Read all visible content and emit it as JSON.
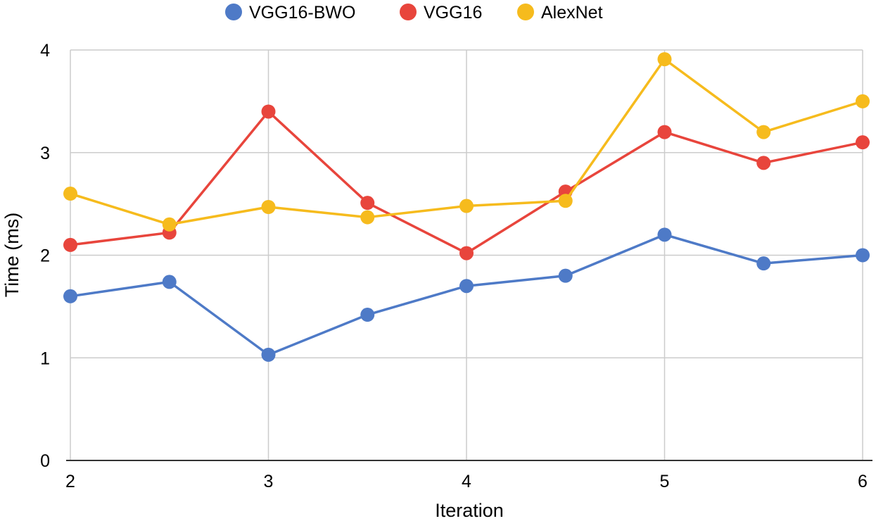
{
  "chart_data": {
    "type": "line",
    "title": "",
    "xlabel": "Iteration",
    "ylabel": "Time (ms)",
    "xlim": [
      2,
      6
    ],
    "ylim": [
      0,
      4
    ],
    "x_ticks": [
      2,
      3,
      4,
      5,
      6
    ],
    "y_ticks": [
      0,
      1,
      2,
      3,
      4
    ],
    "grid": true,
    "legend_position": "top-center",
    "x": [
      2,
      2.5,
      3,
      3.5,
      4,
      4.5,
      5,
      5.5,
      6
    ],
    "series": [
      {
        "name": "VGG16-BWO",
        "color": "#4e7ac7",
        "values": [
          1.6,
          1.74,
          1.03,
          1.42,
          1.7,
          1.8,
          2.2,
          1.92,
          2.0
        ]
      },
      {
        "name": "VGG16",
        "color": "#e8453c",
        "values": [
          2.1,
          2.22,
          3.4,
          2.51,
          2.02,
          2.62,
          3.2,
          2.9,
          3.1
        ]
      },
      {
        "name": "AlexNet",
        "color": "#f6bb1d",
        "values": [
          2.6,
          2.3,
          2.47,
          2.37,
          2.48,
          2.53,
          3.91,
          3.2,
          3.5
        ]
      }
    ]
  }
}
